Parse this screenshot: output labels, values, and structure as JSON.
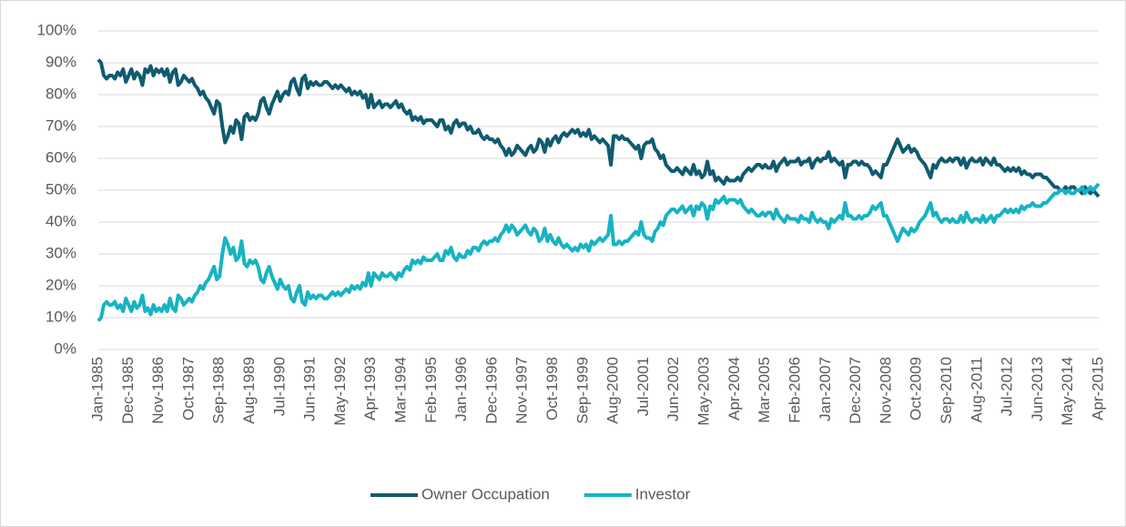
{
  "chart_data": {
    "type": "line",
    "categories": [
      "Jan-1985",
      null,
      null,
      null,
      null,
      null,
      null,
      null,
      null,
      null,
      null,
      "Dec-1985",
      null,
      null,
      null,
      null,
      null,
      null,
      null,
      null,
      null,
      null,
      "Nov-1986",
      null,
      null,
      null,
      null,
      null,
      null,
      null,
      null,
      null,
      null,
      "Oct-1987",
      null,
      null,
      null,
      null,
      null,
      null,
      null,
      null,
      null,
      null,
      "Sep-1988",
      null,
      null,
      null,
      null,
      null,
      null,
      null,
      null,
      null,
      null,
      "Aug-1989",
      null,
      null,
      null,
      null,
      null,
      null,
      null,
      null,
      null,
      null,
      "Jul-1990",
      null,
      null,
      null,
      null,
      null,
      null,
      null,
      null,
      null,
      null,
      "Jun-1991",
      null,
      null,
      null,
      null,
      null,
      null,
      null,
      null,
      null,
      null,
      "May-1992",
      null,
      null,
      null,
      null,
      null,
      null,
      null,
      null,
      null,
      null,
      "Apr-1993",
      null,
      null,
      null,
      null,
      null,
      null,
      null,
      null,
      null,
      null,
      "Mar-1994",
      null,
      null,
      null,
      null,
      null,
      null,
      null,
      null,
      null,
      null,
      "Feb-1995",
      null,
      null,
      null,
      null,
      null,
      null,
      null,
      null,
      null,
      null,
      "Jan-1996",
      null,
      null,
      null,
      null,
      null,
      null,
      null,
      null,
      null,
      null,
      "Dec-1996",
      null,
      null,
      null,
      null,
      null,
      null,
      null,
      null,
      null,
      null,
      "Nov-1997",
      null,
      null,
      null,
      null,
      null,
      null,
      null,
      null,
      null,
      null,
      "Oct-1998",
      null,
      null,
      null,
      null,
      null,
      null,
      null,
      null,
      null,
      null,
      "Sep-1999",
      null,
      null,
      null,
      null,
      null,
      null,
      null,
      null,
      null,
      null,
      "Aug-2000",
      null,
      null,
      null,
      null,
      null,
      null,
      null,
      null,
      null,
      null,
      "Jul-2001",
      null,
      null,
      null,
      null,
      null,
      null,
      null,
      null,
      null,
      null,
      "Jun-2002",
      null,
      null,
      null,
      null,
      null,
      null,
      null,
      null,
      null,
      null,
      "May-2003",
      null,
      null,
      null,
      null,
      null,
      null,
      null,
      null,
      null,
      null,
      "Apr-2004",
      null,
      null,
      null,
      null,
      null,
      null,
      null,
      null,
      null,
      null,
      "Mar-2005",
      null,
      null,
      null,
      null,
      null,
      null,
      null,
      null,
      null,
      null,
      "Feb-2006",
      null,
      null,
      null,
      null,
      null,
      null,
      null,
      null,
      null,
      null,
      "Jan-2007",
      null,
      null,
      null,
      null,
      null,
      null,
      null,
      null,
      null,
      null,
      "Dec-2007",
      null,
      null,
      null,
      null,
      null,
      null,
      null,
      null,
      null,
      null,
      "Nov-2008",
      null,
      null,
      null,
      null,
      null,
      null,
      null,
      null,
      null,
      null,
      "Oct-2009",
      null,
      null,
      null,
      null,
      null,
      null,
      null,
      null,
      null,
      null,
      "Sep-2010",
      null,
      null,
      null,
      null,
      null,
      null,
      null,
      null,
      null,
      null,
      "Aug-2011",
      null,
      null,
      null,
      null,
      null,
      null,
      null,
      null,
      null,
      null,
      "Jul-2012",
      null,
      null,
      null,
      null,
      null,
      null,
      null,
      null,
      null,
      null,
      "Jun-2013",
      null,
      null,
      null,
      null,
      null,
      null,
      null,
      null,
      null,
      null,
      "May-2014",
      null,
      null,
      null,
      null,
      null,
      null,
      null,
      null,
      null,
      null,
      "Apr-2015"
    ],
    "series": [
      {
        "name": "Owner Occupation",
        "color": "#0f5b70",
        "values": [
          91,
          90,
          86,
          85,
          86,
          86,
          85,
          87,
          86,
          88,
          84,
          86,
          88,
          85,
          87,
          86,
          83,
          88,
          87,
          89,
          86,
          88,
          87,
          88,
          86,
          88,
          84,
          87,
          88,
          83,
          84,
          86,
          85,
          84,
          85,
          83,
          82,
          80,
          81,
          79,
          78,
          76,
          74,
          78,
          77,
          70,
          65,
          67,
          70,
          68,
          72,
          71,
          66,
          73,
          74,
          72,
          73,
          72,
          74,
          78,
          79,
          76,
          74,
          77,
          79,
          81,
          78,
          80,
          81,
          80,
          84,
          85,
          82,
          80,
          85,
          86,
          82,
          84,
          83,
          84,
          83,
          83,
          84,
          84,
          83,
          82,
          83,
          82,
          83,
          82,
          81,
          82,
          80,
          81,
          80,
          81,
          79,
          80,
          76,
          80,
          76,
          77,
          78,
          76,
          77,
          77,
          76,
          77,
          78,
          76,
          77,
          75,
          74,
          75,
          72,
          73,
          72,
          73,
          71,
          72,
          72,
          72,
          71,
          70,
          72,
          72,
          69,
          70,
          68,
          71,
          72,
          70,
          71,
          71,
          69,
          70,
          68,
          68,
          69,
          67,
          66,
          67,
          66,
          66,
          65,
          66,
          64,
          63,
          61,
          63,
          61,
          62,
          64,
          63,
          62,
          61,
          63,
          64,
          62,
          63,
          66,
          65,
          62,
          66,
          64,
          66,
          67,
          65,
          67,
          68,
          67,
          68,
          69,
          68,
          69,
          67,
          68,
          67,
          69,
          66,
          67,
          66,
          65,
          66,
          65,
          64,
          58,
          67,
          67,
          66,
          67,
          66,
          66,
          65,
          64,
          63,
          64,
          60,
          64,
          65,
          65,
          66,
          63,
          62,
          60,
          61,
          58,
          57,
          56,
          56,
          57,
          56,
          55,
          57,
          56,
          55,
          58,
          55,
          56,
          54,
          55,
          59,
          55,
          56,
          53,
          54,
          53,
          52,
          54,
          53,
          53,
          53,
          54,
          53,
          55,
          56,
          57,
          56,
          57,
          58,
          58,
          57,
          58,
          57,
          57,
          59,
          56,
          58,
          59,
          60,
          58,
          59,
          59,
          59,
          60,
          58,
          59,
          59,
          60,
          57,
          59,
          60,
          59,
          60,
          60,
          62,
          59,
          60,
          59,
          58,
          59,
          54,
          58,
          58,
          59,
          59,
          58,
          59,
          58,
          58,
          57,
          55,
          56,
          55,
          54,
          58,
          58,
          60,
          62,
          64,
          66,
          64,
          62,
          63,
          64,
          62,
          63,
          62,
          60,
          59,
          58,
          56,
          54,
          58,
          57,
          59,
          60,
          59,
          59,
          60,
          59,
          60,
          60,
          58,
          60,
          57,
          59,
          60,
          59,
          59,
          60,
          58,
          60,
          59,
          58,
          60,
          58,
          58,
          57,
          56,
          57,
          56,
          57,
          56,
          57,
          55,
          56,
          55,
          55,
          54,
          55,
          55,
          55,
          54,
          54,
          53,
          52,
          51,
          51,
          50,
          50,
          51,
          50,
          51,
          51,
          50,
          50,
          49,
          51,
          50,
          49,
          50,
          49,
          48
        ]
      },
      {
        "name": "Investor",
        "color": "#17b3c3",
        "values": [
          9,
          10,
          14,
          15,
          14,
          14,
          15,
          13,
          14,
          12,
          16,
          14,
          12,
          15,
          13,
          14,
          17,
          12,
          13,
          11,
          14,
          12,
          13,
          12,
          14,
          12,
          16,
          13,
          12,
          17,
          16,
          14,
          15,
          16,
          15,
          17,
          18,
          20,
          19,
          21,
          22,
          24,
          26,
          22,
          23,
          30,
          35,
          33,
          30,
          32,
          28,
          29,
          34,
          27,
          26,
          28,
          27,
          28,
          26,
          22,
          21,
          24,
          26,
          23,
          21,
          19,
          22,
          20,
          19,
          20,
          16,
          15,
          18,
          20,
          15,
          14,
          18,
          16,
          17,
          16,
          17,
          17,
          16,
          16,
          17,
          18,
          17,
          18,
          17,
          18,
          19,
          18,
          20,
          19,
          20,
          19,
          21,
          20,
          24,
          20,
          24,
          23,
          22,
          24,
          23,
          23,
          24,
          23,
          22,
          24,
          23,
          25,
          26,
          25,
          28,
          27,
          28,
          27,
          29,
          28,
          28,
          28,
          29,
          30,
          28,
          28,
          31,
          30,
          32,
          29,
          28,
          30,
          29,
          29,
          31,
          30,
          32,
          32,
          31,
          33,
          34,
          33,
          34,
          34,
          35,
          34,
          36,
          37,
          39,
          37,
          39,
          38,
          36,
          37,
          38,
          39,
          37,
          36,
          38,
          37,
          34,
          35,
          38,
          34,
          36,
          34,
          33,
          35,
          33,
          32,
          33,
          32,
          31,
          32,
          31,
          33,
          32,
          33,
          31,
          34,
          33,
          34,
          35,
          34,
          35,
          36,
          42,
          33,
          33,
          34,
          33,
          34,
          34,
          35,
          36,
          37,
          36,
          40,
          36,
          35,
          35,
          34,
          37,
          38,
          40,
          39,
          42,
          43,
          44,
          44,
          43,
          44,
          45,
          43,
          44,
          45,
          42,
          45,
          44,
          46,
          45,
          41,
          45,
          44,
          47,
          46,
          47,
          48,
          46,
          47,
          47,
          47,
          46,
          47,
          45,
          44,
          43,
          44,
          43,
          42,
          42,
          43,
          42,
          43,
          43,
          41,
          44,
          42,
          41,
          40,
          42,
          41,
          41,
          41,
          40,
          42,
          41,
          41,
          40,
          43,
          41,
          40,
          41,
          40,
          40,
          38,
          41,
          40,
          41,
          42,
          41,
          46,
          42,
          42,
          41,
          41,
          42,
          41,
          42,
          42,
          43,
          45,
          44,
          45,
          46,
          42,
          42,
          40,
          38,
          36,
          34,
          36,
          38,
          37,
          36,
          38,
          37,
          38,
          40,
          41,
          42,
          44,
          46,
          42,
          43,
          41,
          40,
          41,
          41,
          40,
          41,
          40,
          40,
          42,
          40,
          43,
          41,
          40,
          41,
          41,
          40,
          42,
          40,
          41,
          42,
          40,
          42,
          42,
          43,
          44,
          43,
          44,
          43,
          44,
          43,
          45,
          44,
          45,
          45,
          46,
          45,
          45,
          45,
          46,
          46,
          47,
          48,
          49,
          49,
          50,
          50,
          49,
          50,
          49,
          49,
          50,
          50,
          51,
          49,
          50,
          51,
          50,
          51,
          52
        ]
      }
    ],
    "ylim": [
      0,
      100
    ],
    "yticks": [
      {
        "value": 0,
        "label": "0%"
      },
      {
        "value": 10,
        "label": "10%"
      },
      {
        "value": 20,
        "label": "20%"
      },
      {
        "value": 30,
        "label": "30%"
      },
      {
        "value": 40,
        "label": "40%"
      },
      {
        "value": 50,
        "label": "50%"
      },
      {
        "value": 60,
        "label": "60%"
      },
      {
        "value": 70,
        "label": "70%"
      },
      {
        "value": 80,
        "label": "80%"
      },
      {
        "value": 90,
        "label": "90%"
      },
      {
        "value": 100,
        "label": "100%"
      }
    ],
    "grid": true,
    "legend": "bottom"
  }
}
